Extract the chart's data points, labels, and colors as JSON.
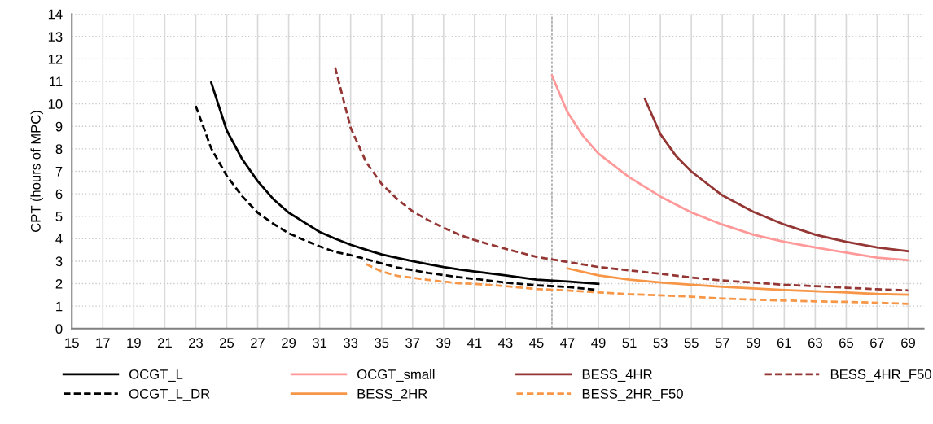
{
  "chart_data": {
    "type": "line",
    "ylabel": "CPT (hours of MPC)",
    "xlim": [
      15,
      70
    ],
    "xticks": [
      15,
      17,
      19,
      21,
      23,
      25,
      27,
      29,
      31,
      33,
      35,
      37,
      39,
      41,
      43,
      45,
      47,
      49,
      51,
      53,
      55,
      57,
      59,
      61,
      63,
      65,
      67,
      69
    ],
    "ylim": [
      0,
      14
    ],
    "yticks": [
      0,
      1,
      2,
      3,
      4,
      5,
      6,
      7,
      8,
      9,
      10,
      11,
      12,
      13,
      14
    ],
    "grid": true,
    "legend": "bottom",
    "marker": "none",
    "ref_lines": [
      {
        "axis": "x",
        "value": 46,
        "color": "#7f7f7f",
        "line_style": "dashed"
      }
    ],
    "series": [
      {
        "name": "OCGT_L",
        "color": "#000000",
        "line_style": "solid",
        "x": [
          24,
          25,
          26,
          27,
          28,
          29,
          30,
          31,
          32,
          33,
          34,
          35,
          36,
          37,
          38,
          39,
          40,
          41,
          43,
          45,
          47,
          49
        ],
        "values": [
          10.95,
          8.82,
          7.54,
          6.56,
          5.77,
          5.16,
          4.73,
          4.3,
          4.0,
          3.73,
          3.51,
          3.3,
          3.15,
          3.0,
          2.87,
          2.74,
          2.63,
          2.54,
          2.37,
          2.18,
          2.1,
          1.99
        ]
      },
      {
        "name": "OCGT_L_DR",
        "color": "#000000",
        "line_style": "dashed",
        "x": [
          23,
          24,
          25,
          26,
          27,
          28,
          29,
          30,
          31,
          32,
          33,
          34,
          35,
          36,
          37,
          38,
          39,
          40,
          41,
          43,
          45,
          47,
          49
        ],
        "values": [
          9.91,
          8.02,
          6.8,
          5.89,
          5.16,
          4.67,
          4.24,
          3.94,
          3.66,
          3.41,
          3.27,
          3.09,
          2.9,
          2.72,
          2.6,
          2.48,
          2.38,
          2.29,
          2.21,
          2.05,
          1.93,
          1.85,
          1.72
        ]
      },
      {
        "name": "OCGT_small",
        "color": "#ff9999",
        "line_style": "solid",
        "x": [
          46,
          47,
          48,
          49,
          51,
          53,
          55,
          57,
          59,
          61,
          63,
          65,
          67,
          69
        ],
        "values": [
          11.26,
          9.63,
          8.58,
          7.79,
          6.73,
          5.88,
          5.17,
          4.63,
          4.18,
          3.86,
          3.61,
          3.38,
          3.16,
          3.04
        ]
      },
      {
        "name": "BESS_2HR",
        "color": "#f79646",
        "line_style": "solid",
        "x": [
          47,
          49,
          51,
          53,
          55,
          57,
          59,
          61,
          63,
          65,
          67,
          69
        ],
        "values": [
          2.68,
          2.37,
          2.18,
          2.05,
          1.95,
          1.86,
          1.79,
          1.72,
          1.66,
          1.61,
          1.54,
          1.51
        ]
      },
      {
        "name": "BESS_4HR",
        "color": "#943634",
        "line_style": "solid",
        "x": [
          52,
          53,
          54,
          55,
          57,
          59,
          61,
          63,
          65,
          67,
          69
        ],
        "values": [
          10.22,
          8.65,
          7.69,
          6.99,
          5.93,
          5.2,
          4.63,
          4.18,
          3.86,
          3.61,
          3.44
        ]
      },
      {
        "name": "BESS_2HR_F50",
        "color": "#f79646",
        "line_style": "dashed",
        "x": [
          34,
          35,
          36,
          37,
          38,
          39,
          40,
          41,
          43,
          45,
          47,
          49,
          51,
          53,
          55,
          57,
          59,
          61,
          63,
          65,
          67,
          69
        ],
        "values": [
          2.87,
          2.54,
          2.35,
          2.26,
          2.17,
          2.09,
          2.02,
          1.99,
          1.89,
          1.76,
          1.7,
          1.61,
          1.53,
          1.48,
          1.42,
          1.34,
          1.29,
          1.25,
          1.21,
          1.19,
          1.15,
          1.1
        ]
      },
      {
        "name": "BESS_4HR_F50",
        "color": "#943634",
        "line_style": "dashed",
        "x": [
          32,
          33,
          34,
          35,
          36,
          37,
          38,
          39,
          40,
          41,
          43,
          45,
          47,
          49,
          51,
          53,
          55,
          57,
          59,
          61,
          63,
          65,
          67,
          69
        ],
        "values": [
          11.62,
          8.94,
          7.41,
          6.44,
          5.77,
          5.22,
          4.83,
          4.49,
          4.18,
          3.94,
          3.55,
          3.19,
          2.97,
          2.74,
          2.59,
          2.44,
          2.27,
          2.14,
          2.05,
          1.95,
          1.89,
          1.82,
          1.75,
          1.7
        ]
      }
    ]
  }
}
